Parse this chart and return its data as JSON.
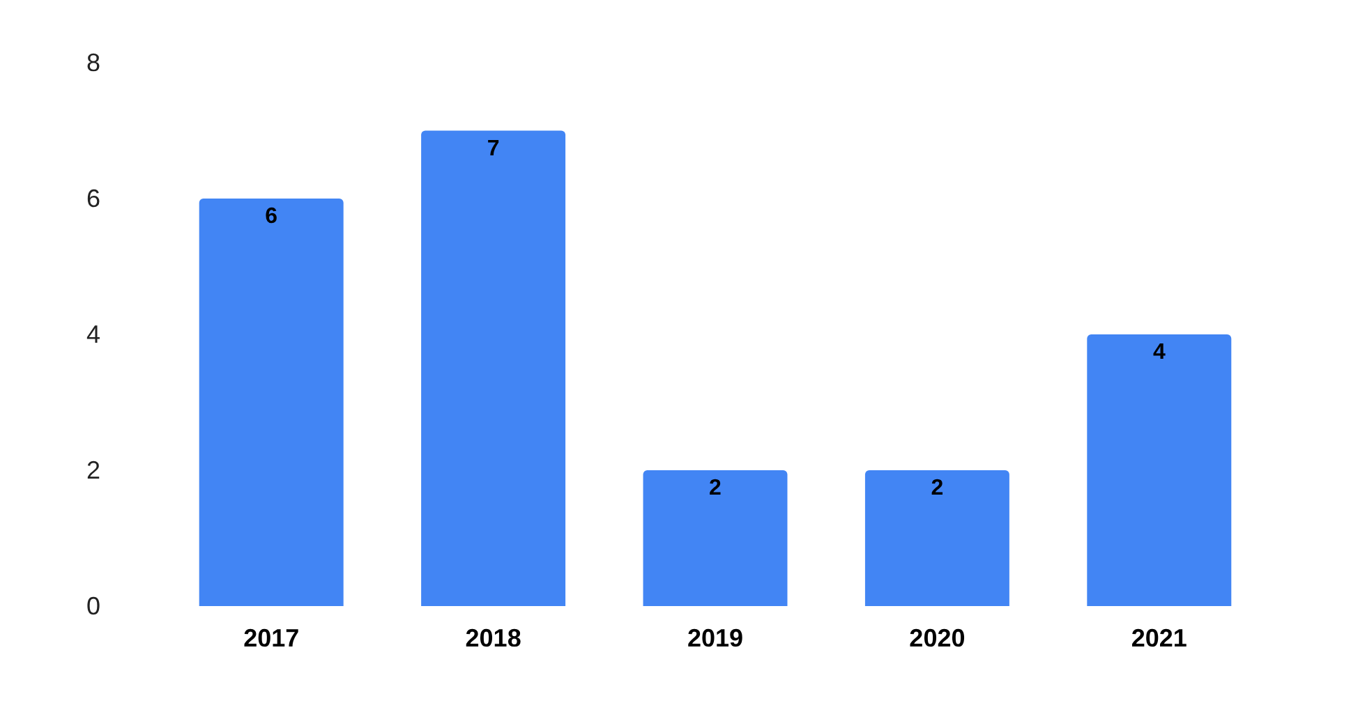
{
  "chart_data": {
    "type": "bar",
    "categories": [
      "2017",
      "2018",
      "2019",
      "2020",
      "2021"
    ],
    "values": [
      6,
      7,
      2,
      2,
      4
    ],
    "color": "#4285f4",
    "ylim": [
      0,
      8
    ],
    "yticks": [
      0,
      2,
      4,
      6,
      8
    ],
    "grid": false,
    "data_labels": true
  }
}
